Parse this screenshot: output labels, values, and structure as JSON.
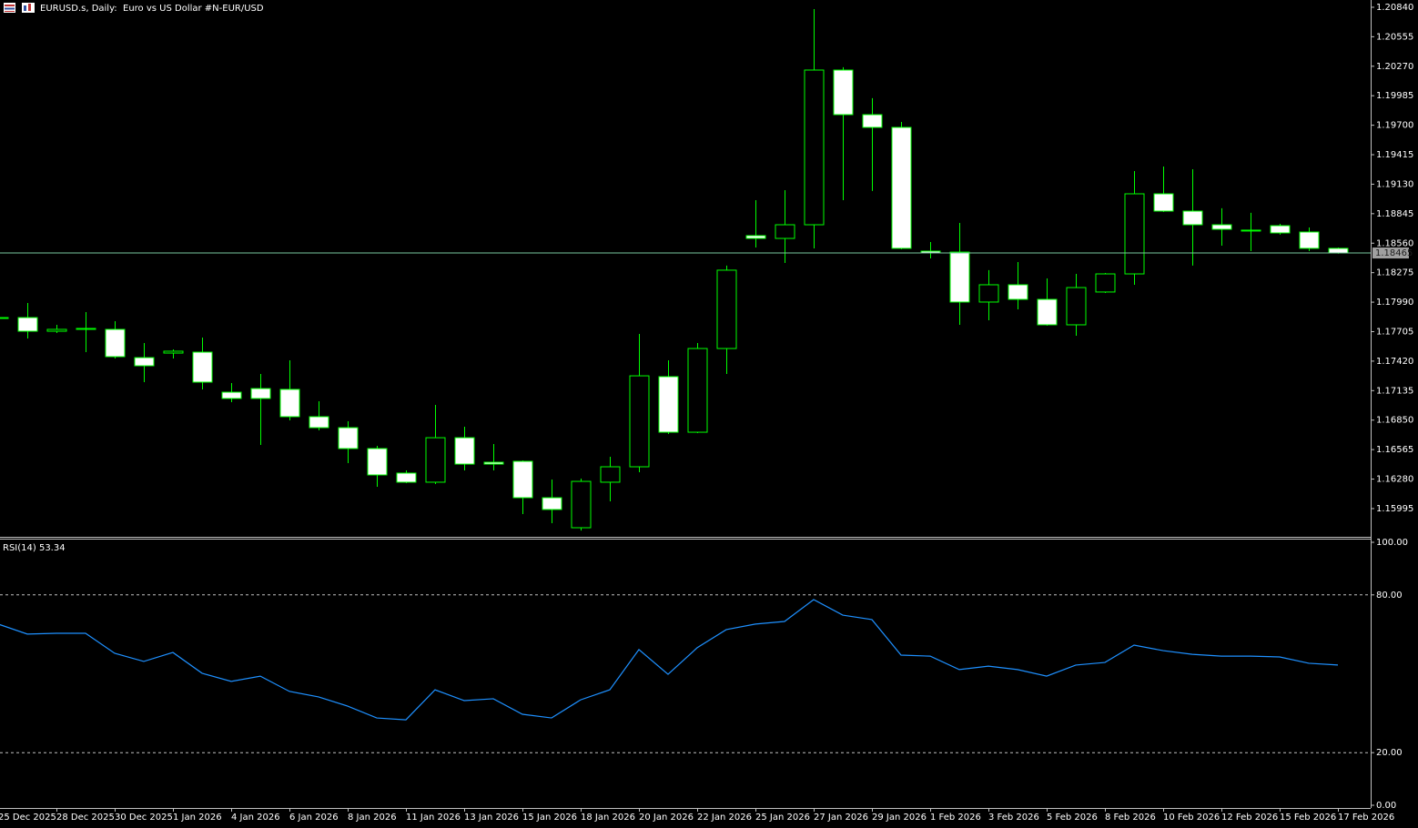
{
  "chart_data": [
    {
      "type": "candlestick",
      "title": "EURUSD.s, Daily:  Euro vs US Dollar #N-EUR/USD",
      "categories": [
        "25 Dec 2025",
        null,
        "28 Dec 2025",
        null,
        "30 Dec 2025",
        null,
        "1 Jan 2026",
        null,
        "4 Jan 2026",
        null,
        "6 Jan 2026",
        null,
        "8 Jan 2026",
        null,
        "11 Jan 2026",
        null,
        "13 Jan 2026",
        null,
        "15 Jan 2026",
        null,
        "18 Jan 2026",
        null,
        "20 Jan 2026",
        null,
        "22 Jan 2026",
        null,
        "25 Jan 2026",
        null,
        "27 Jan 2026",
        null,
        "29 Jan 2026",
        null,
        "1 Feb 2026",
        null,
        "3 Feb 2026",
        null,
        "5 Feb 2026",
        null,
        "8 Feb 2026",
        null,
        "10 Feb 2026",
        null,
        "12 Feb 2026",
        null,
        "15 Feb 2026",
        null,
        "17 Feb 2026"
      ],
      "open": [
        1.17841,
        1.17841,
        1.17709,
        1.17727,
        1.17727,
        1.17454,
        1.17498,
        1.17507,
        1.1712,
        1.17155,
        1.17147,
        1.16883,
        1.16777,
        1.16575,
        1.16338,
        1.1625,
        1.1668,
        1.16443,
        1.16452,
        1.161,
        1.1581,
        1.1625,
        1.16399,
        1.1727,
        1.16733,
        1.17542,
        1.18633,
        1.18606,
        1.18738,
        1.20233,
        1.19802,
        1.19679,
        1.18483,
        1.18474,
        1.17991,
        1.18158,
        1.18017,
        1.17771,
        1.18088,
        1.18263,
        1.19037,
        1.1887,
        1.18738,
        1.18686,
        1.18729,
        1.18668,
        1.1851
      ],
      "high": [
        1.17876,
        1.17982,
        1.17771,
        1.17894,
        1.17806,
        1.17595,
        1.17533,
        1.17648,
        1.17208,
        1.17296,
        1.17428,
        1.17032,
        1.16839,
        1.16601,
        1.16364,
        1.16997,
        1.16786,
        1.16619,
        1.16461,
        1.16276,
        1.16285,
        1.16496,
        1.17683,
        1.17428,
        1.17595,
        1.18343,
        1.18976,
        1.19072,
        1.20822,
        1.2026,
        1.19961,
        1.19732,
        1.18571,
        1.18756,
        1.18299,
        1.18378,
        1.18219,
        1.18263,
        1.18272,
        1.19257,
        1.19301,
        1.19275,
        1.18897,
        1.18853,
        1.18747,
        1.18712,
        1.18518
      ],
      "low": [
        1.17806,
        1.17639,
        1.17692,
        1.17507,
        1.17446,
        1.17217,
        1.17446,
        1.17147,
        1.17023,
        1.1661,
        1.16848,
        1.16751,
        1.16434,
        1.16206,
        1.16241,
        1.16232,
        1.16364,
        1.16364,
        1.15942,
        1.15854,
        1.15783,
        1.16065,
        1.16346,
        1.16716,
        1.16724,
        1.17296,
        1.18518,
        1.18369,
        1.1851,
        1.18976,
        1.19064,
        1.18501,
        1.18413,
        1.17771,
        1.17815,
        1.1792,
        1.17762,
        1.17665,
        1.18079,
        1.18158,
        1.18861,
        1.18343,
        1.18536,
        1.18483,
        1.18642,
        1.18483,
        1.18458
      ],
      "close": [
        1.17833,
        1.17709,
        1.17727,
        1.17736,
        1.17463,
        1.17375,
        1.17516,
        1.17217,
        1.17059,
        1.17059,
        1.16883,
        1.16777,
        1.16575,
        1.1632,
        1.1625,
        1.1668,
        1.16425,
        1.16425,
        1.161,
        1.15986,
        1.16258,
        1.16399,
        1.17278,
        1.16733,
        1.17542,
        1.18299,
        1.18606,
        1.18738,
        1.20233,
        1.19802,
        1.19679,
        1.1851,
        1.18466,
        1.17991,
        1.18158,
        1.18017,
        1.17771,
        1.18131,
        1.18263,
        1.19037,
        1.1887,
        1.18738,
        1.18694,
        1.18686,
        1.18659,
        1.1851,
        1.18465
      ],
      "color": "#00ff00",
      "bull_color": "#000000",
      "bear_color": "#ffffff",
      "current_price": 1.18465,
      "current_price_color": "#78c8a0",
      "ylim": [
        1.15722,
        1.2091
      ],
      "yticks": [
        {
          "value": 1.2084,
          "label": "1.20840"
        },
        1.20555,
        {
          "value": 1.2027,
          "label": "1.20270"
        },
        1.19985,
        {
          "value": 1.197,
          "label": "1.19700"
        },
        1.19415,
        {
          "value": 1.1913,
          "label": "1.19130"
        },
        1.18845,
        {
          "value": 1.1856,
          "label": "1.18560"
        },
        1.18275,
        {
          "value": 1.1799,
          "label": "1.17990"
        },
        1.17705,
        {
          "value": 1.1742,
          "label": "1.17420"
        },
        1.17135,
        {
          "value": 1.1685,
          "label": "1.16850"
        },
        1.16565,
        {
          "value": 1.1628,
          "label": "1.16280"
        },
        1.15995
      ]
    },
    {
      "type": "line",
      "title": "RSI(14) 53.34",
      "color": "#1e90ff",
      "values": [
        68.9,
        65.1,
        65.4,
        65.4,
        57.8,
        54.7,
        58.1,
        50.2,
        47.1,
        49.1,
        43.3,
        41.2,
        37.7,
        33.2,
        32.5,
        43.9,
        39.8,
        40.5,
        34.6,
        33.2,
        40.1,
        43.9,
        59.2,
        49.8,
        59.9,
        66.8,
        68.9,
        69.9,
        78.2,
        72.3,
        70.6,
        57.1,
        56.7,
        51.6,
        52.9,
        51.6,
        49.1,
        53.3,
        54.3,
        60.9,
        58.8,
        57.4,
        56.7,
        56.7,
        56.4,
        54.0,
        53.34
      ],
      "ylim": [
        0,
        100
      ],
      "yticks": [
        {
          "value": 100,
          "label": "100.00"
        },
        {
          "value": 80,
          "label": "80.00"
        },
        {
          "value": 20,
          "label": "20.00"
        },
        {
          "value": 0,
          "label": "0.00"
        }
      ]
    }
  ]
}
